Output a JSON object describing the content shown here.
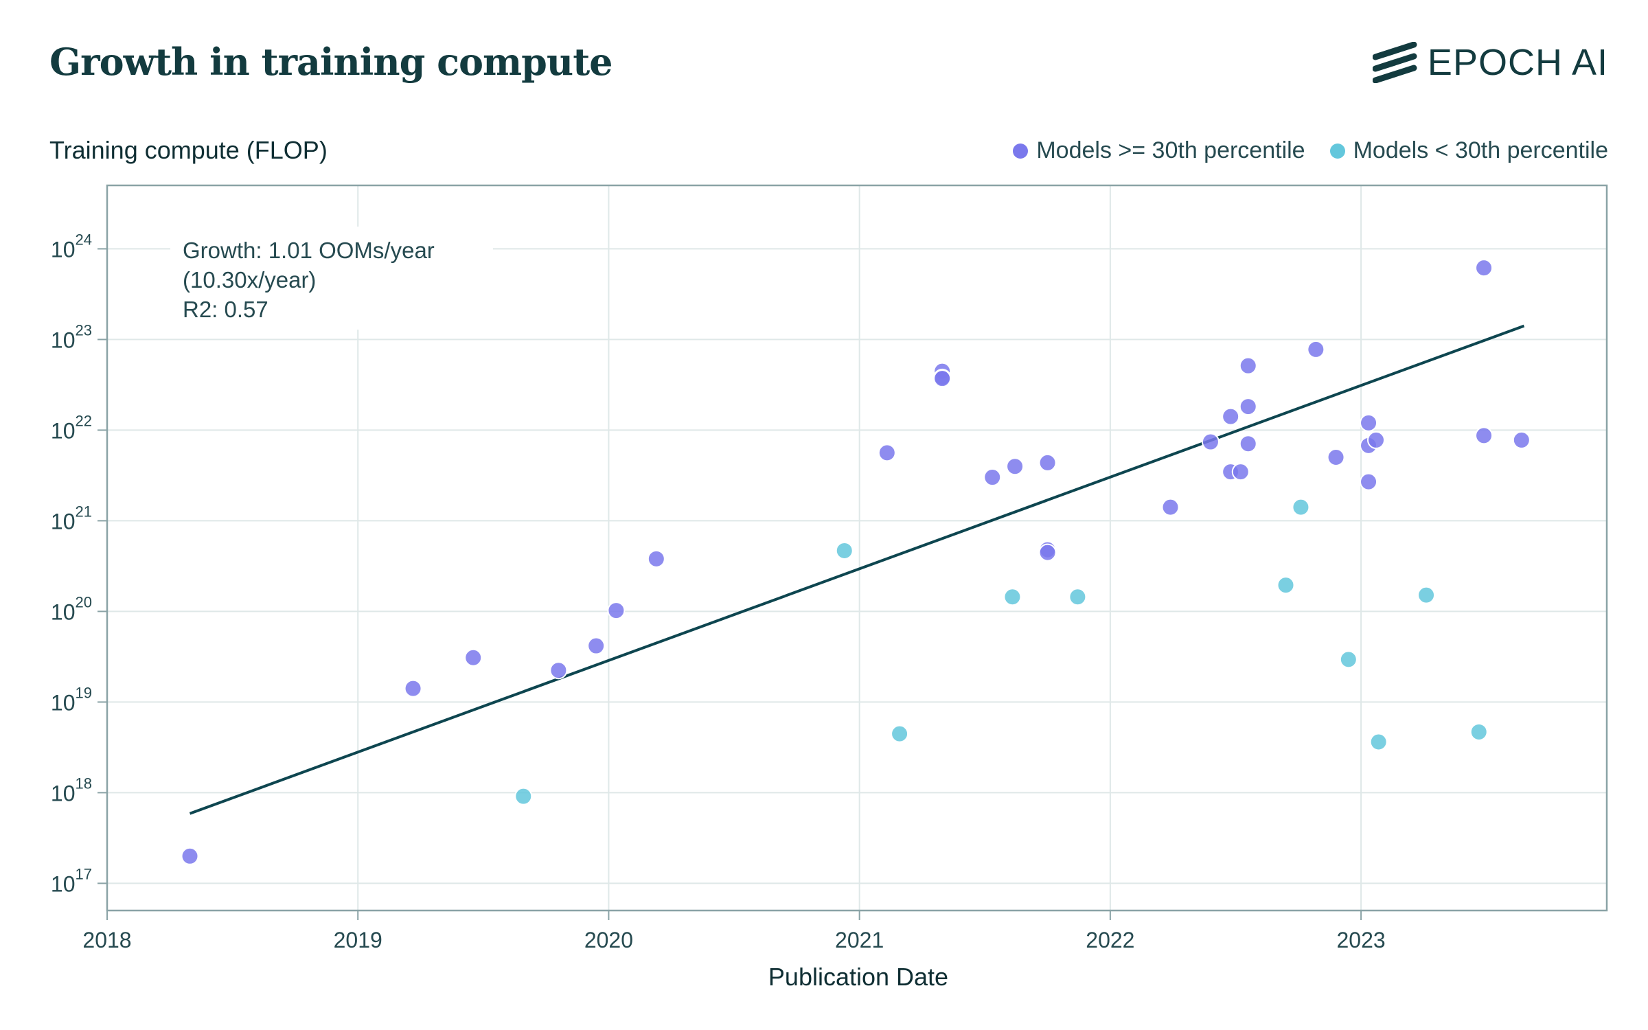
{
  "header": {
    "title": "Growth in training compute",
    "brand": "EPOCH AI"
  },
  "chart_data": {
    "type": "scatter",
    "ylabel": "Training compute (FLOP)",
    "xlabel": "Publication Date",
    "x_scale": "date",
    "y_scale": "log",
    "xlim": [
      2018.0,
      2023.98
    ],
    "ylim_exponent": [
      16.7,
      24.7
    ],
    "x_ticks": [
      "2018",
      "2019",
      "2020",
      "2021",
      "2022",
      "2023"
    ],
    "y_ticks": [
      {
        "base": "10",
        "exp": "17"
      },
      {
        "base": "10",
        "exp": "18"
      },
      {
        "base": "10",
        "exp": "19"
      },
      {
        "base": "10",
        "exp": "20"
      },
      {
        "base": "10",
        "exp": "21"
      },
      {
        "base": "10",
        "exp": "22"
      },
      {
        "base": "10",
        "exp": "23"
      },
      {
        "base": "10",
        "exp": "24"
      }
    ],
    "grid": true,
    "legend_position": "top-right",
    "annotation": {
      "line1": "Growth: 1.01 OOMs/year",
      "line2": "(10.30x/year)",
      "line3": "R2: 0.57"
    },
    "trend": {
      "x": [
        2018.33,
        2023.65
      ],
      "log10_y": [
        17.77,
        23.15
      ]
    },
    "series": [
      {
        "name": "Models >= 30th percentile",
        "color": "#7a78ec",
        "points": [
          [
            2018.33,
            17.3
          ],
          [
            2019.22,
            19.15
          ],
          [
            2019.46,
            19.49
          ],
          [
            2019.8,
            19.35
          ],
          [
            2019.95,
            19.62
          ],
          [
            2020.03,
            20.01
          ],
          [
            2020.19,
            20.58
          ],
          [
            2021.11,
            21.75
          ],
          [
            2021.33,
            22.65
          ],
          [
            2021.33,
            22.58
          ],
          [
            2021.33,
            22.57
          ],
          [
            2021.53,
            21.48
          ],
          [
            2021.62,
            21.6
          ],
          [
            2021.75,
            21.64
          ],
          [
            2021.75,
            20.68
          ],
          [
            2021.75,
            20.65
          ],
          [
            2022.24,
            21.15
          ],
          [
            2022.4,
            21.87
          ],
          [
            2022.48,
            22.15
          ],
          [
            2022.48,
            21.54
          ],
          [
            2022.52,
            21.54
          ],
          [
            2022.55,
            22.26
          ],
          [
            2022.55,
            21.85
          ],
          [
            2022.55,
            22.71
          ],
          [
            2022.82,
            22.89
          ],
          [
            2022.9,
            21.7
          ],
          [
            2023.03,
            22.08
          ],
          [
            2023.03,
            21.83
          ],
          [
            2023.03,
            21.43
          ],
          [
            2023.06,
            21.89
          ],
          [
            2023.49,
            23.79
          ],
          [
            2023.49,
            21.94
          ],
          [
            2023.64,
            21.89
          ]
        ]
      },
      {
        "name": "Models < 30th percentile",
        "color": "#63c7dc",
        "points": [
          [
            2019.66,
            17.96
          ],
          [
            2020.94,
            20.67
          ],
          [
            2021.16,
            18.65
          ],
          [
            2021.61,
            20.16
          ],
          [
            2021.87,
            20.16
          ],
          [
            2022.7,
            20.29
          ],
          [
            2022.76,
            21.15
          ],
          [
            2022.95,
            19.47
          ],
          [
            2023.07,
            18.56
          ],
          [
            2023.26,
            20.18
          ],
          [
            2023.47,
            18.67
          ]
        ]
      }
    ]
  }
}
